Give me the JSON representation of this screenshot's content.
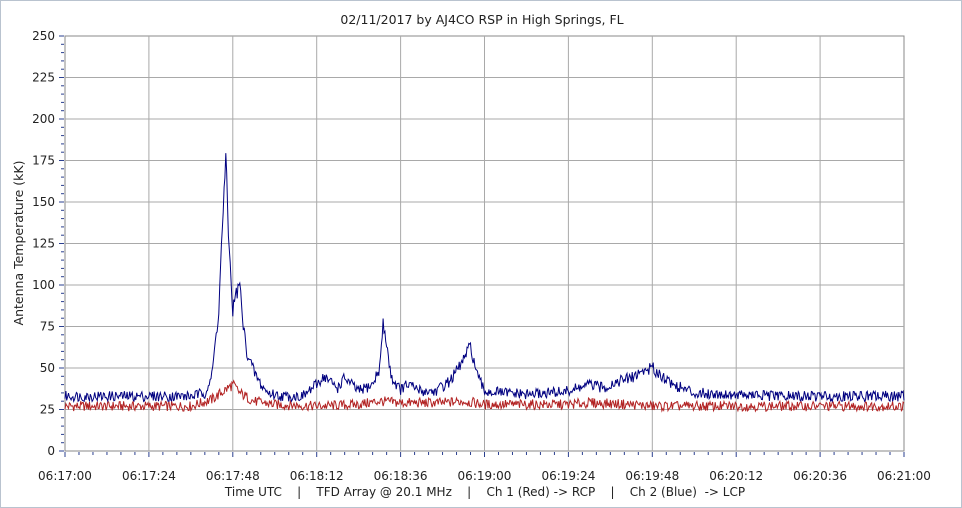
{
  "chart_data": {
    "type": "line",
    "title": "02/11/2017  by  AJ4CO RSP  in  High Springs, FL",
    "xlabel": "Time UTC    |    TFD Array @ 20.1 MHz    |    Ch 1 (Red) -> RCP    |    Ch 2 (Blue)  -> LCP",
    "ylabel": "Antenna Temperature (kK)",
    "x_tick_labels": [
      "06:17:00",
      "06:17:24",
      "06:17:48",
      "06:18:12",
      "06:18:36",
      "06:19:00",
      "06:19:24",
      "06:19:48",
      "06:20:12",
      "06:20:36",
      "06:21:00"
    ],
    "y_tick_labels": [
      "0",
      "25",
      "50",
      "75",
      "100",
      "125",
      "150",
      "175",
      "200",
      "225",
      "250"
    ],
    "xlim": [
      "06:17:00",
      "06:21:00"
    ],
    "ylim": [
      0,
      250
    ],
    "grid": true,
    "legend": "none",
    "series": [
      {
        "color": "#b22222",
        "x": [
          "06:17:00",
          "06:17:18",
          "06:17:36",
          "06:17:42",
          "06:17:46",
          "06:17:48",
          "06:17:50",
          "06:17:54",
          "06:18:00",
          "06:18:12",
          "06:18:24",
          "06:18:30",
          "06:18:36",
          "06:18:48",
          "06:18:54",
          "06:19:00",
          "06:19:24",
          "06:19:30",
          "06:19:42",
          "06:19:48",
          "06:20:00",
          "06:20:24",
          "06:20:48",
          "06:21:00"
        ],
        "values": [
          27,
          27,
          27,
          31,
          37,
          40,
          35,
          30,
          28,
          27,
          28,
          30,
          29,
          29,
          30,
          28,
          28,
          29,
          28,
          27,
          27,
          27,
          27,
          27
        ]
      },
      {
        "color": "#000080",
        "x": [
          "06:17:00",
          "06:17:12",
          "06:17:24",
          "06:17:36",
          "06:17:40",
          "06:17:42",
          "06:17:44",
          "06:17:45",
          "06:17:46",
          "06:17:47",
          "06:17:48",
          "06:17:49",
          "06:17:50",
          "06:17:51",
          "06:17:52",
          "06:17:54",
          "06:17:56",
          "06:17:58",
          "06:18:02",
          "06:18:08",
          "06:18:12",
          "06:18:14",
          "06:18:18",
          "06:18:20",
          "06:18:24",
          "06:18:28",
          "06:18:30",
          "06:18:31",
          "06:18:32",
          "06:18:33",
          "06:18:34",
          "06:18:36",
          "06:18:38",
          "06:18:42",
          "06:18:46",
          "06:18:50",
          "06:18:52",
          "06:18:54",
          "06:18:56",
          "06:18:58",
          "06:19:00",
          "06:19:12",
          "06:19:24",
          "06:19:30",
          "06:19:34",
          "06:19:38",
          "06:19:42",
          "06:19:45",
          "06:19:48",
          "06:19:54",
          "06:20:00",
          "06:20:24",
          "06:20:48",
          "06:21:00"
        ],
        "values": [
          33,
          33,
          33,
          33,
          35,
          45,
          85,
          135,
          174,
          120,
          85,
          95,
          100,
          75,
          60,
          48,
          40,
          35,
          33,
          33,
          40,
          45,
          38,
          44,
          36,
          40,
          50,
          76,
          65,
          48,
          42,
          37,
          40,
          36,
          36,
          42,
          48,
          55,
          63,
          45,
          36,
          34,
          36,
          40,
          38,
          42,
          44,
          48,
          50,
          40,
          35,
          33,
          33,
          33
        ]
      }
    ]
  }
}
